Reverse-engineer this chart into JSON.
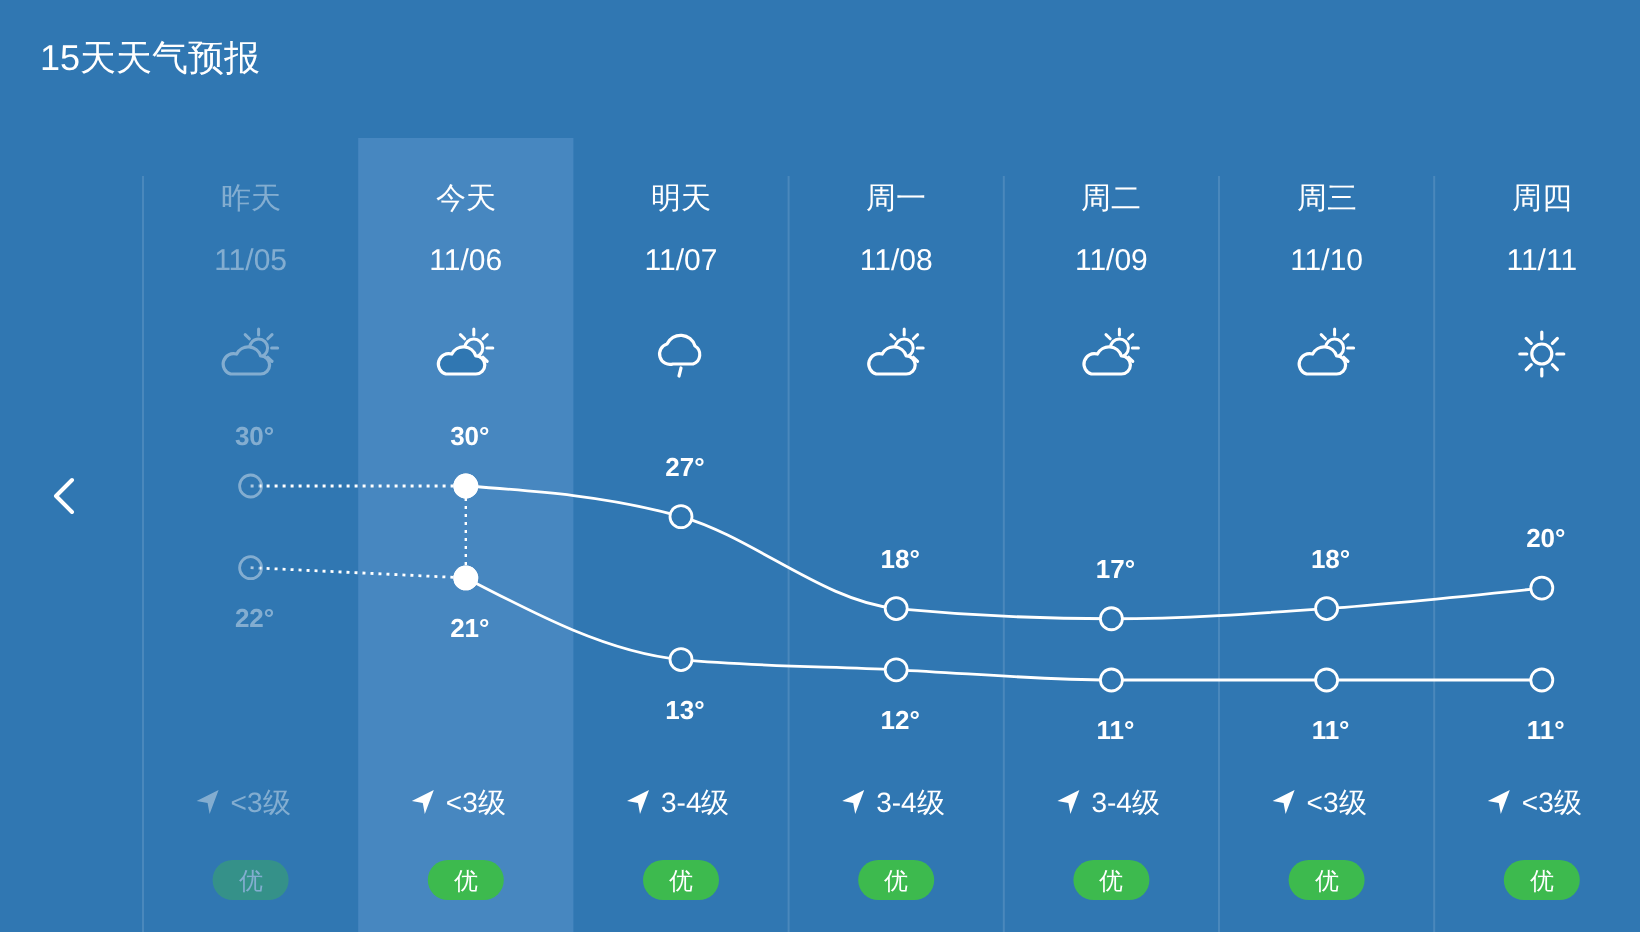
{
  "chart_data": {
    "type": "line",
    "title": "15天天气预报",
    "categories": [
      "昨天\n11/05",
      "今天\n11/06",
      "明天\n11/07",
      "周一\n11/08",
      "周二\n11/09",
      "周三\n11/10",
      "周四\n11/11"
    ],
    "series": [
      {
        "color": "#ffffff",
        "line_style": "dotted",
        "values": [
          30,
          30,
          null,
          null,
          null,
          null,
          null
        ],
        "value_labels": [
          "30°",
          null,
          null,
          null,
          null,
          null,
          null
        ]
      },
      {
        "color": "#ffffff",
        "values": [
          null,
          30,
          27,
          18,
          17,
          18,
          20
        ],
        "value_labels": [
          null,
          "30°",
          "27°",
          "18°",
          "17°",
          "18°",
          "20°"
        ]
      },
      {
        "color": "#ffffff",
        "line_style": "dotted",
        "values": [
          22,
          21,
          null,
          null,
          null,
          null,
          null
        ],
        "value_labels": [
          "22°",
          null,
          null,
          null,
          null,
          null,
          null
        ]
      },
      {
        "color": "#ffffff",
        "values": [
          null,
          21,
          13,
          12,
          11,
          11,
          11
        ],
        "value_labels": [
          null,
          "21°",
          "13°",
          "12°",
          "11°",
          "11°",
          "11°"
        ]
      }
    ],
    "marker": "circle",
    "grid": "x",
    "tick_labels": "x",
    "bands": [
      {
        "axis": "x",
        "from": "今天\n11/06",
        "to": "今天\n11/06",
        "color": "#4787c0"
      }
    ],
    "annotations": [
      "<3级",
      "<3级",
      "3-4级",
      "3-4级",
      "3-4级",
      "<3级",
      "<3级",
      "优",
      "优",
      "优",
      "优",
      "优",
      "优",
      "优"
    ]
  }
}
